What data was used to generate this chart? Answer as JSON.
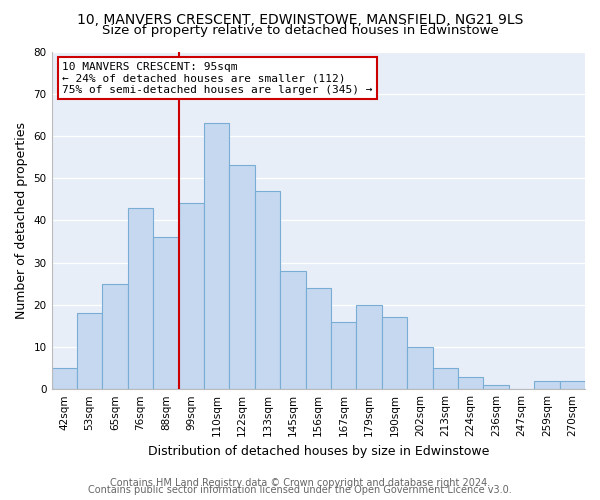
{
  "title_line1": "10, MANVERS CRESCENT, EDWINSTOWE, MANSFIELD, NG21 9LS",
  "title_line2": "Size of property relative to detached houses in Edwinstowe",
  "xlabel": "Distribution of detached houses by size in Edwinstowe",
  "ylabel": "Number of detached properties",
  "footer_line1": "Contains HM Land Registry data © Crown copyright and database right 2024.",
  "footer_line2": "Contains public sector information licensed under the Open Government Licence v3.0.",
  "annotation_title": "10 MANVERS CRESCENT: 95sqm",
  "annotation_line2": "← 24% of detached houses are smaller (112)",
  "annotation_line3": "75% of semi-detached houses are larger (345) →",
  "bar_labels": [
    "42sqm",
    "53sqm",
    "65sqm",
    "76sqm",
    "88sqm",
    "99sqm",
    "110sqm",
    "122sqm",
    "133sqm",
    "145sqm",
    "156sqm",
    "167sqm",
    "179sqm",
    "190sqm",
    "202sqm",
    "213sqm",
    "224sqm",
    "236sqm",
    "247sqm",
    "259sqm",
    "270sqm"
  ],
  "bar_values": [
    5,
    18,
    25,
    43,
    36,
    44,
    63,
    53,
    47,
    28,
    24,
    16,
    20,
    17,
    10,
    5,
    3,
    1,
    0,
    2,
    2
  ],
  "bar_color": "#c5d8f0",
  "bar_edge_color": "#7aadd4",
  "reference_line_color": "#cc0000",
  "ylim": [
    0,
    80
  ],
  "yticks": [
    0,
    10,
    20,
    30,
    40,
    50,
    60,
    70,
    80
  ],
  "figure_background_color": "#ffffff",
  "plot_background_color": "#e8eef8",
  "grid_color": "#ffffff",
  "annotation_box_color": "#ffffff",
  "annotation_box_edge": "#cc0000",
  "title_fontsize": 10,
  "subtitle_fontsize": 9.5,
  "axis_label_fontsize": 9,
  "tick_fontsize": 7.5,
  "footer_fontsize": 7,
  "annotation_fontsize": 8
}
